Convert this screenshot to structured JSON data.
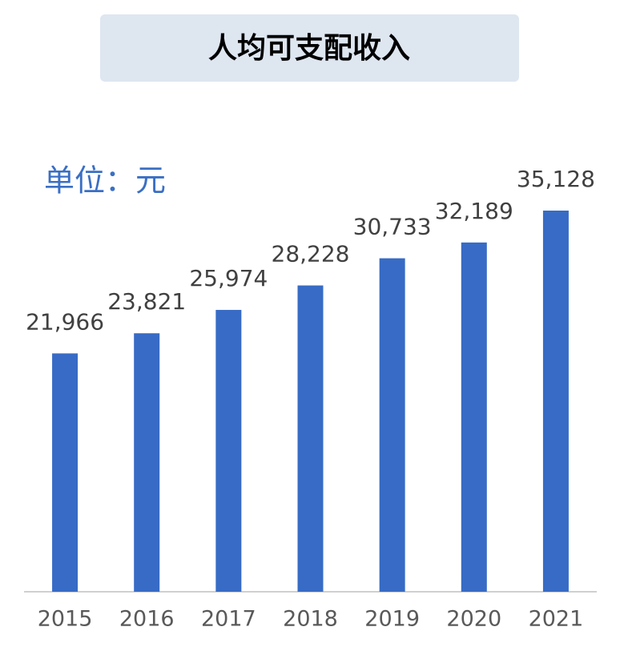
{
  "chart_data": {
    "type": "bar",
    "title": "人均可支配收入",
    "subtitle": "单位：元",
    "categories": [
      "2015",
      "2016",
      "2017",
      "2018",
      "2019",
      "2020",
      "2021"
    ],
    "values": [
      21966,
      23821,
      25974,
      28228,
      30733,
      32189,
      35128
    ],
    "value_labels": [
      "21,966",
      "23,821",
      "25,974",
      "28,228",
      "30,733",
      "32,189",
      "35,128"
    ],
    "color": "#376bc5"
  }
}
